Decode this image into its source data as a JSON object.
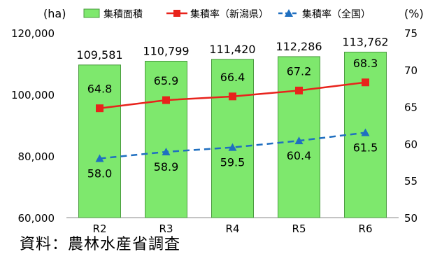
{
  "chart_data": {
    "type": "bar+line",
    "categories": [
      "R2",
      "R3",
      "R4",
      "R5",
      "R6"
    ],
    "y_left": {
      "unit": "(ha)",
      "ylim": [
        60000,
        120000
      ],
      "ticks": [
        "60,000",
        "80,000",
        "100,000",
        "120,000"
      ],
      "tick_values": [
        60000,
        80000,
        100000,
        120000
      ]
    },
    "y_right": {
      "unit": "(%)",
      "ylim": [
        50,
        75
      ],
      "ticks": [
        "50",
        "55",
        "60",
        "65",
        "70",
        "75"
      ],
      "tick_values": [
        50,
        55,
        60,
        65,
        70,
        75
      ]
    },
    "series": [
      {
        "name": "集積面積",
        "kind": "bar",
        "axis": "left",
        "color": "#7ee86d",
        "values": [
          109581,
          110799,
          111420,
          112286,
          113762
        ],
        "labels": [
          "109,581",
          "110,799",
          "111,420",
          "112,286",
          "113,762"
        ]
      },
      {
        "name": "集積率（新潟県）",
        "kind": "line",
        "axis": "right",
        "color": "#e8231c",
        "values": [
          64.8,
          65.9,
          66.4,
          67.2,
          68.3
        ],
        "labels": [
          "64.8",
          "65.9",
          "66.4",
          "67.2",
          "68.3"
        ]
      },
      {
        "name": "集積率（全国）",
        "kind": "dashed-line",
        "axis": "right",
        "color": "#1f6fc0",
        "values": [
          58.0,
          58.9,
          59.5,
          60.4,
          61.5
        ],
        "labels": [
          "58.0",
          "58.9",
          "59.5",
          "60.4",
          "61.5"
        ]
      }
    ],
    "legend": "top",
    "grid": false
  },
  "source_note": "資料：農林水産省調査"
}
